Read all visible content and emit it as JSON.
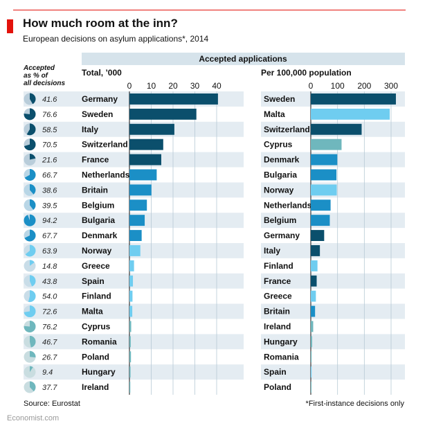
{
  "title": "How much room at the inn?",
  "subtitle": "European decisions on asylum applications*, 2014",
  "source": "Source: Eurostat",
  "footnote": "*First-instance decisions only",
  "brand": "Economist.com",
  "colors": {
    "accent_red": "#e3120b",
    "band": "#d6e3eb",
    "row_stripe": "#e4ecf2",
    "navy": "#0b4f6c",
    "mid_blue": "#1b8fc6",
    "light_blue": "#6fcdf0",
    "teal": "#6fb7bd"
  },
  "chart_data": [
    {
      "type": "pie",
      "title": "Accepted as % of all decisions",
      "categories": [
        "Germany",
        "Sweden",
        "Italy",
        "Switzerland",
        "France",
        "Netherlands",
        "Britain",
        "Belgium",
        "Bulgaria",
        "Denmark",
        "Norway",
        "Greece",
        "Spain",
        "Finland",
        "Malta",
        "Cyprus",
        "Romania",
        "Poland",
        "Hungary",
        "Ireland"
      ],
      "values": [
        41.6,
        76.6,
        58.5,
        70.5,
        21.6,
        66.7,
        38.6,
        39.5,
        94.2,
        67.7,
        63.9,
        14.8,
        43.8,
        54.0,
        72.6,
        76.2,
        46.7,
        26.7,
        9.4,
        37.7
      ],
      "labels": [
        "41.6",
        "76.6",
        "58.5",
        "70.5",
        "21.6",
        "66.7",
        "38.6",
        "39.5",
        "94.2",
        "67.7",
        "63.9",
        "14.8",
        "43.8",
        "54.0",
        "72.6",
        "76.2",
        "46.7",
        "26.7",
        "9.4",
        "37.7"
      ]
    },
    {
      "type": "bar",
      "group_title": "Accepted applications",
      "title": "Total, ’000",
      "categories": [
        "Germany",
        "Sweden",
        "Italy",
        "Switzerland",
        "France",
        "Netherlands",
        "Britain",
        "Belgium",
        "Bulgaria",
        "Denmark",
        "Norway",
        "Greece",
        "Spain",
        "Finland",
        "Malta",
        "Cyprus",
        "Romania",
        "Poland",
        "Hungary",
        "Ireland"
      ],
      "values": [
        40.6,
        30.7,
        20.6,
        15.5,
        14.6,
        12.5,
        10.1,
        8.0,
        7.0,
        5.6,
        5.0,
        2.1,
        1.6,
        1.4,
        1.3,
        0.8,
        0.6,
        0.7,
        0.5,
        0.4
      ],
      "xlim": [
        0,
        40
      ],
      "ticks": [
        "0",
        "10",
        "20",
        "30",
        "40"
      ],
      "colors": [
        "#0b4f6c",
        "#0b4f6c",
        "#0b4f6c",
        "#0b4f6c",
        "#0b4f6c",
        "#1b8fc6",
        "#1b8fc6",
        "#1b8fc6",
        "#1b8fc6",
        "#1b8fc6",
        "#6fcdf0",
        "#6fcdf0",
        "#6fcdf0",
        "#6fcdf0",
        "#6fcdf0",
        "#6fb7bd",
        "#6fb7bd",
        "#6fb7bd",
        "#6fb7bd",
        "#6fb7bd"
      ]
    },
    {
      "type": "bar",
      "title": "Per 100,000 population",
      "categories": [
        "Sweden",
        "Malta",
        "Switzerland",
        "Cyprus",
        "Denmark",
        "Bulgaria",
        "Norway",
        "Netherlands",
        "Belgium",
        "Germany",
        "Italy",
        "Finland",
        "France",
        "Greece",
        "Britain",
        "Ireland",
        "Hungary",
        "Romania",
        "Spain",
        "Poland"
      ],
      "values": [
        318,
        295,
        190,
        115,
        99,
        96,
        97,
        74,
        71,
        50,
        34,
        25,
        22,
        19,
        16,
        9,
        5,
        3,
        3,
        2
      ],
      "xlim": [
        0,
        330
      ],
      "ticks": [
        "0",
        "100",
        "200",
        "300"
      ],
      "colors": [
        "#0b4f6c",
        "#6fcdf0",
        "#0b4f6c",
        "#6fb7bd",
        "#1b8fc6",
        "#1b8fc6",
        "#6fcdf0",
        "#1b8fc6",
        "#1b8fc6",
        "#0b4f6c",
        "#0b4f6c",
        "#6fcdf0",
        "#0b4f6c",
        "#6fcdf0",
        "#1b8fc6",
        "#6fb7bd",
        "#6fb7bd",
        "#6fb7bd",
        "#6fcdf0",
        "#6fb7bd"
      ]
    }
  ]
}
